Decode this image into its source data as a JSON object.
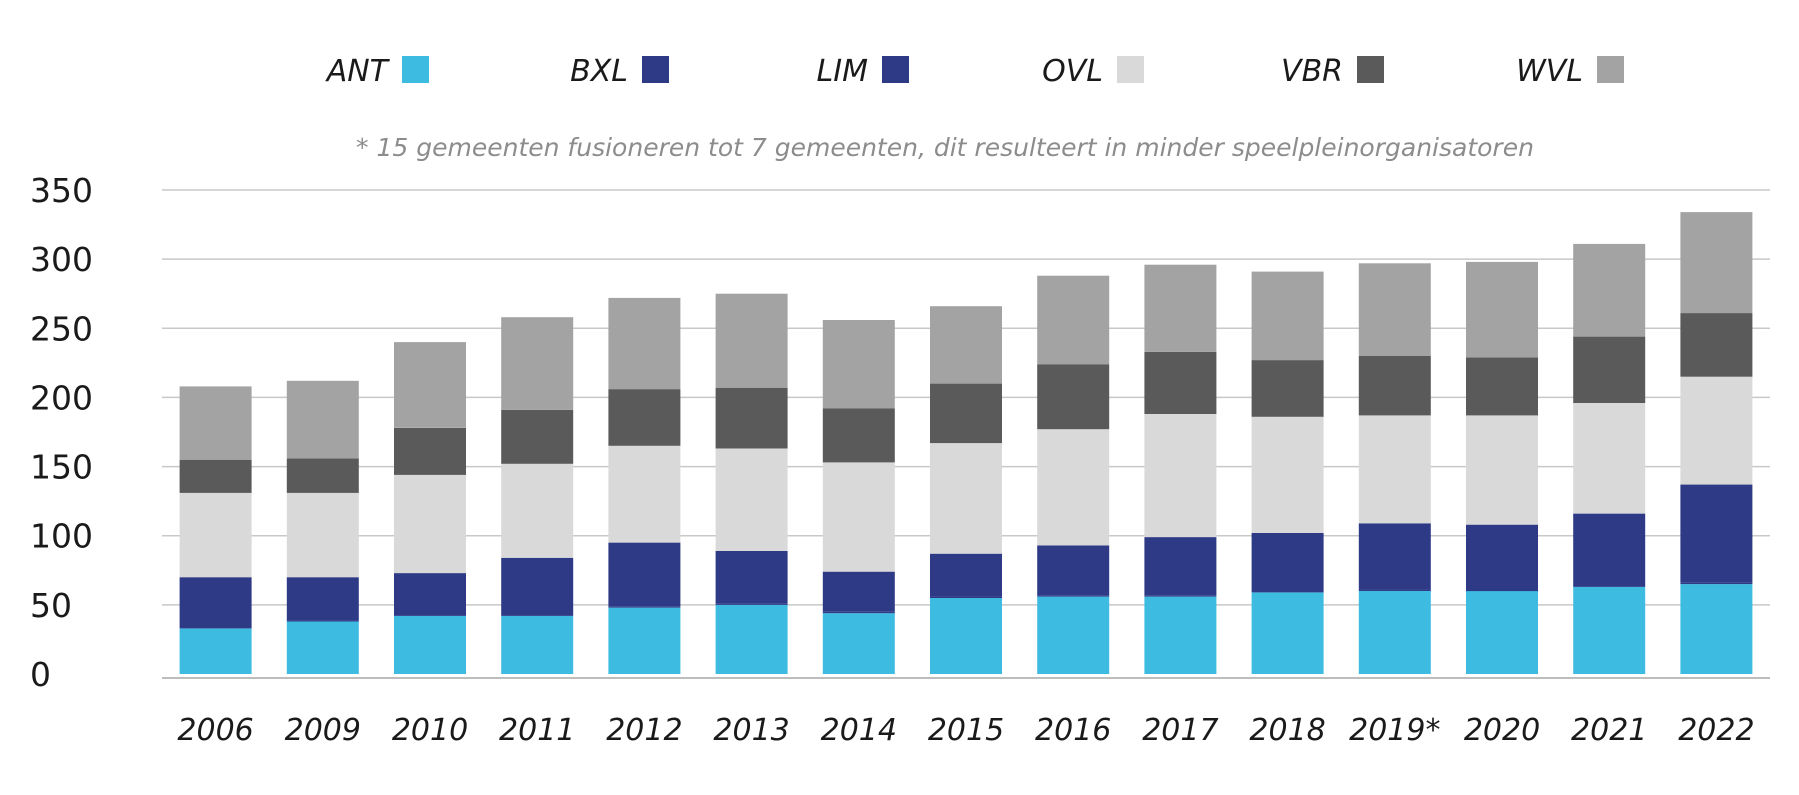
{
  "chart_data": {
    "type": "bar",
    "stacked": true,
    "title": "",
    "note": "* 15 gemeenten fusioneren tot 7 gemeenten, dit resulteert in minder speelpleinorganisatoren",
    "xlabel": "",
    "ylabel": "",
    "ylim": [
      0,
      350
    ],
    "yticks": [
      0,
      50,
      100,
      150,
      200,
      250,
      300,
      350
    ],
    "grid": true,
    "legend_position": "top",
    "categories": [
      "2006",
      "2009",
      "2010",
      "2011",
      "2012",
      "2013",
      "2014",
      "2015",
      "2016",
      "2017",
      "2018",
      "2019*",
      "2020",
      "2021",
      "2022"
    ],
    "series": [
      {
        "name": "ANT",
        "color": "#3dbbe0",
        "values": [
          33,
          38,
          42,
          42,
          48,
          50,
          44,
          55,
          56,
          56,
          59,
          60,
          60,
          63,
          65
        ]
      },
      {
        "name": "BXL",
        "color": "#2e3a86",
        "values": [
          1,
          1,
          1,
          1,
          1,
          1,
          1,
          1,
          1,
          1,
          1,
          1,
          0,
          1,
          1
        ]
      },
      {
        "name": "LIM",
        "color": "#2e3a86",
        "values": [
          36,
          31,
          30,
          41,
          46,
          38,
          29,
          31,
          36,
          42,
          42,
          48,
          48,
          52,
          71
        ]
      },
      {
        "name": "OVL",
        "color": "#d9d9d9",
        "values": [
          61,
          61,
          71,
          68,
          70,
          74,
          79,
          80,
          84,
          89,
          84,
          78,
          79,
          80,
          78
        ]
      },
      {
        "name": "VBR",
        "color": "#5a5a5a",
        "values": [
          24,
          25,
          34,
          39,
          41,
          44,
          39,
          43,
          47,
          45,
          41,
          43,
          42,
          48,
          46
        ]
      },
      {
        "name": "WVL",
        "color": "#a3a3a3",
        "values": [
          53,
          56,
          62,
          67,
          66,
          68,
          64,
          56,
          64,
          63,
          64,
          67,
          69,
          67,
          73
        ]
      }
    ]
  }
}
